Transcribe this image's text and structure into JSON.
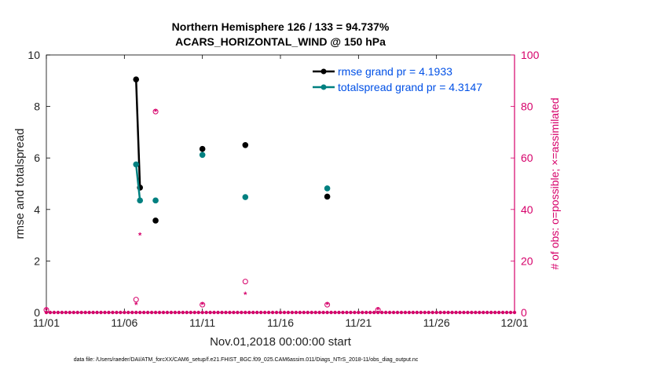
{
  "chart_data": {
    "type": "scatter",
    "title_line1": "Northern Hemisphere 126 / 133 = 94.737%",
    "title_line2": "ACARS_HORIZONTAL_WIND @ 150 hPa",
    "xlabel": "Nov.01,2018 00:00:00 start",
    "ylabel_left": "rmse and totalspread",
    "ylabel_right": "# of obs: o=possible; ×=assimilated",
    "footer": "data file: /Users/raeder/DAI/ATM_forcXX/CAM6_setup/f.e21.FHIST_BGC.f09_025.CAM6assim.011/Diags_NTrS_2018-11/obs_diag_output.nc",
    "x_tick_labels": [
      "11/01",
      "11/06",
      "11/11",
      "11/16",
      "11/21",
      "11/26",
      "12/01"
    ],
    "x_ticks": [
      1,
      6,
      11,
      16,
      21,
      26,
      31
    ],
    "xlim": [
      1,
      31
    ],
    "ylim_left": [
      0,
      10
    ],
    "yticks_left": [
      0,
      2,
      4,
      6,
      8,
      10
    ],
    "ylim_right": [
      0,
      100
    ],
    "yticks_right": [
      0,
      20,
      40,
      60,
      80,
      100
    ],
    "colors": {
      "rmse": "#000000",
      "spread": "#008080",
      "obs": "#d6006a",
      "legend_text": "#0050e6"
    },
    "series": [
      {
        "name": "rmse grand pr = 4.1933",
        "key": "rmse",
        "points": [
          [
            6.75,
            9.05
          ],
          [
            7.0,
            4.85
          ],
          [
            8.0,
            3.57
          ],
          [
            11.0,
            6.35
          ],
          [
            13.75,
            6.5
          ],
          [
            19.0,
            4.5
          ]
        ],
        "line_segments": [
          [
            0,
            1
          ]
        ]
      },
      {
        "name": "totalspread grand pr = 4.3147",
        "key": "spread",
        "points": [
          [
            6.75,
            5.75
          ],
          [
            7.0,
            4.35
          ],
          [
            8.0,
            4.35
          ],
          [
            11.0,
            6.12
          ],
          [
            13.75,
            4.48
          ],
          [
            19.0,
            4.82
          ]
        ],
        "line_segments": [
          [
            0,
            1
          ]
        ]
      }
    ],
    "obs_possible": [
      [
        1,
        1
      ],
      [
        6.75,
        5
      ],
      [
        8.0,
        78
      ],
      [
        11.0,
        3
      ],
      [
        13.75,
        12
      ],
      [
        19.0,
        3
      ],
      [
        22.25,
        1
      ]
    ],
    "obs_assimilated": [
      [
        1,
        1
      ],
      [
        6.75,
        3
      ],
      [
        7.0,
        30
      ],
      [
        8.0,
        78
      ],
      [
        11.0,
        3
      ],
      [
        13.75,
        7
      ],
      [
        19.0,
        3
      ],
      [
        22.25,
        1
      ]
    ],
    "obs_baseline_every": 0.25,
    "obs_baseline_value": 0
  }
}
